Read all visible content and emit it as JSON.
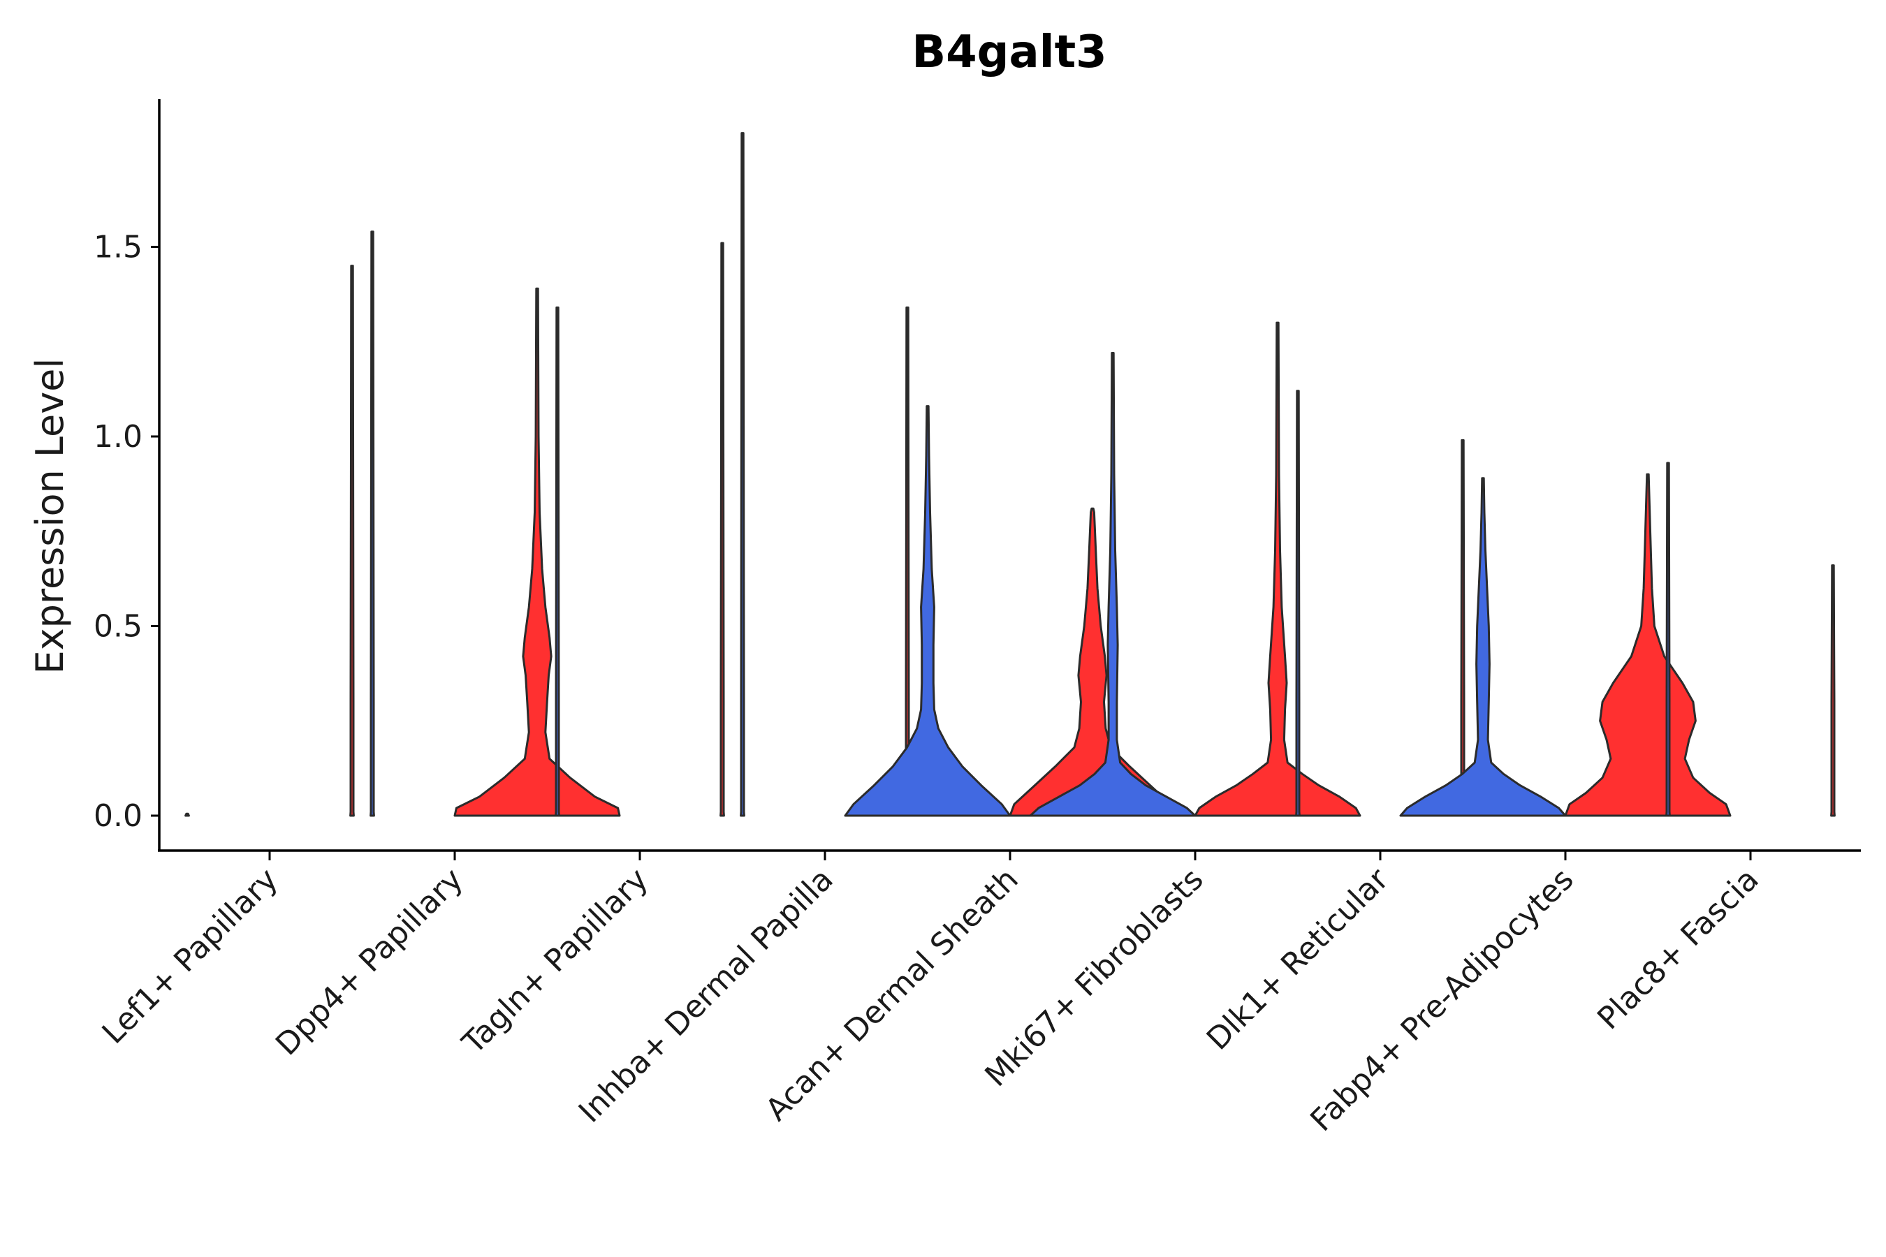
{
  "chart_data": {
    "type": "violin",
    "title": "B4galt3",
    "xlabel": "",
    "ylabel": "Expression Level",
    "ylim": [
      -0.09,
      1.89
    ],
    "yticks": [
      0.0,
      0.5,
      1.0,
      1.5
    ],
    "ytick_labels": [
      "0.0",
      "0.5",
      "1.0",
      "1.5"
    ],
    "categories": [
      "Lef1+ Papillary",
      "Dpp4+ Papillary",
      "Tagln+ Papillary",
      "Inhba+ Dermal Papilla",
      "Acan+ Dermal Sheath",
      "Mki67+ Fibroblasts",
      "Dlk1+ Reticular",
      "Fabp4+ Pre-Adipocytes",
      "Plac8+ Fascia"
    ],
    "split_colors": {
      "left": "#4169E1",
      "right": "#FF3030"
    },
    "violins": [
      {
        "category": "Lef1+ Papillary",
        "side": "left",
        "color": "#4169E1",
        "max": 0.0,
        "densities": [
          [
            0,
            0.02
          ],
          [
            0.005,
            0
          ]
        ]
      },
      {
        "category": "Lef1+ Papillary",
        "side": "right",
        "color": "#FF3030",
        "max": 1.45,
        "densities": [
          [
            0,
            0.02
          ],
          [
            0.01,
            0.002
          ],
          [
            0.3,
            0.001
          ],
          [
            1.45,
            0.001
          ]
        ]
      },
      {
        "category": "Dpp4+ Papillary",
        "side": "left",
        "color": "#4169E1",
        "max": 1.54,
        "densities": [
          [
            0,
            0.02
          ],
          [
            0.01,
            0.002
          ],
          [
            0.3,
            0.001
          ],
          [
            1.54,
            0.001
          ]
        ]
      },
      {
        "category": "Dpp4+ Papillary",
        "side": "right",
        "color": "#FF3030",
        "max": 1.39,
        "densities": [
          [
            0,
            1.0
          ],
          [
            0.02,
            0.98
          ],
          [
            0.05,
            0.7
          ],
          [
            0.1,
            0.4
          ],
          [
            0.15,
            0.15
          ],
          [
            0.22,
            0.1
          ],
          [
            0.3,
            0.12
          ],
          [
            0.37,
            0.14
          ],
          [
            0.42,
            0.17
          ],
          [
            0.47,
            0.15
          ],
          [
            0.55,
            0.1
          ],
          [
            0.65,
            0.06
          ],
          [
            0.8,
            0.03
          ],
          [
            1.0,
            0.01
          ],
          [
            1.39,
            0.001
          ]
        ]
      },
      {
        "category": "Tagln+ Papillary",
        "side": "left",
        "color": "#4169E1",
        "max": 1.34,
        "densities": [
          [
            0,
            0.02
          ],
          [
            0.01,
            0.002
          ],
          [
            0.3,
            0.001
          ],
          [
            1.34,
            0.001
          ]
        ]
      },
      {
        "category": "Tagln+ Papillary",
        "side": "right",
        "color": "#FF3030",
        "max": 1.51,
        "densities": [
          [
            0,
            0.02
          ],
          [
            0.01,
            0.002
          ],
          [
            0.3,
            0.001
          ],
          [
            1.51,
            0.001
          ]
        ]
      },
      {
        "category": "Inhba+ Dermal Papilla",
        "side": "left",
        "color": "#4169E1",
        "max": 1.8,
        "densities": [
          [
            0,
            0.02
          ],
          [
            0.01,
            0.002
          ],
          [
            0.3,
            0.001
          ],
          [
            1.8,
            0.001
          ]
        ]
      },
      {
        "category": "Inhba+ Dermal Papilla",
        "side": "right",
        "color": "#FF3030",
        "max": 1.34,
        "densities": [
          [
            0,
            0.02
          ],
          [
            0.01,
            0.002
          ],
          [
            0.3,
            0.001
          ],
          [
            1.34,
            0.001
          ]
        ]
      },
      {
        "category": "Acan+ Dermal Sheath",
        "side": "left",
        "color": "#4169E1",
        "max": 1.08,
        "densities": [
          [
            0,
            1.0
          ],
          [
            0.03,
            0.9
          ],
          [
            0.08,
            0.65
          ],
          [
            0.13,
            0.42
          ],
          [
            0.18,
            0.25
          ],
          [
            0.23,
            0.13
          ],
          [
            0.28,
            0.08
          ],
          [
            0.35,
            0.07
          ],
          [
            0.45,
            0.07
          ],
          [
            0.55,
            0.08
          ],
          [
            0.65,
            0.05
          ],
          [
            0.8,
            0.03
          ],
          [
            0.95,
            0.015
          ],
          [
            1.08,
            0.001
          ]
        ]
      },
      {
        "category": "Acan+ Dermal Sheath",
        "side": "right",
        "color": "#FF3030",
        "max": 0.81,
        "densities": [
          [
            0,
            1.0
          ],
          [
            0.03,
            0.95
          ],
          [
            0.08,
            0.7
          ],
          [
            0.13,
            0.45
          ],
          [
            0.18,
            0.22
          ],
          [
            0.23,
            0.16
          ],
          [
            0.3,
            0.14
          ],
          [
            0.37,
            0.17
          ],
          [
            0.42,
            0.15
          ],
          [
            0.5,
            0.1
          ],
          [
            0.6,
            0.06
          ],
          [
            0.7,
            0.04
          ],
          [
            0.8,
            0.02
          ],
          [
            0.81,
            0.001
          ]
        ]
      },
      {
        "category": "Mki67+ Fibroblasts",
        "side": "left",
        "color": "#4169E1",
        "max": 1.22,
        "densities": [
          [
            0,
            1.0
          ],
          [
            0.02,
            0.9
          ],
          [
            0.05,
            0.65
          ],
          [
            0.08,
            0.4
          ],
          [
            0.11,
            0.22
          ],
          [
            0.14,
            0.09
          ],
          [
            0.2,
            0.05
          ],
          [
            0.3,
            0.05
          ],
          [
            0.45,
            0.06
          ],
          [
            0.55,
            0.05
          ],
          [
            0.7,
            0.03
          ],
          [
            0.9,
            0.015
          ],
          [
            1.22,
            0.001
          ]
        ]
      },
      {
        "category": "Mki67+ Fibroblasts",
        "side": "right",
        "color": "#FF3030",
        "max": 1.3,
        "densities": [
          [
            0,
            1.0
          ],
          [
            0.02,
            0.95
          ],
          [
            0.05,
            0.75
          ],
          [
            0.08,
            0.5
          ],
          [
            0.11,
            0.3
          ],
          [
            0.14,
            0.12
          ],
          [
            0.2,
            0.08
          ],
          [
            0.28,
            0.09
          ],
          [
            0.35,
            0.11
          ],
          [
            0.42,
            0.09
          ],
          [
            0.55,
            0.05
          ],
          [
            0.7,
            0.03
          ],
          [
            0.9,
            0.015
          ],
          [
            1.3,
            0.001
          ]
        ]
      },
      {
        "category": "Dlk1+ Reticular",
        "side": "left",
        "color": "#4169E1",
        "max": 1.12,
        "densities": [
          [
            0,
            0.02
          ],
          [
            0.01,
            0.002
          ],
          [
            0.3,
            0.001
          ],
          [
            1.12,
            0.001
          ]
        ]
      },
      {
        "category": "Dlk1+ Reticular",
        "side": "right",
        "color": "#FF3030",
        "max": 0.99,
        "densities": [
          [
            0,
            0.02
          ],
          [
            0.01,
            0.002
          ],
          [
            0.3,
            0.001
          ],
          [
            0.99,
            0.001
          ]
        ]
      },
      {
        "category": "Fabp4+ Pre-Adipocytes",
        "side": "left",
        "color": "#4169E1",
        "max": 0.89,
        "densities": [
          [
            0,
            1.0
          ],
          [
            0.02,
            0.92
          ],
          [
            0.05,
            0.7
          ],
          [
            0.08,
            0.45
          ],
          [
            0.11,
            0.25
          ],
          [
            0.14,
            0.1
          ],
          [
            0.2,
            0.06
          ],
          [
            0.3,
            0.07
          ],
          [
            0.4,
            0.08
          ],
          [
            0.5,
            0.07
          ],
          [
            0.6,
            0.05
          ],
          [
            0.7,
            0.03
          ],
          [
            0.8,
            0.015
          ],
          [
            0.89,
            0.001
          ]
        ]
      },
      {
        "category": "Fabp4+ Pre-Adipocytes",
        "side": "right",
        "color": "#FF3030",
        "max": 0.9,
        "densities": [
          [
            0,
            1.0
          ],
          [
            0.03,
            0.95
          ],
          [
            0.06,
            0.75
          ],
          [
            0.1,
            0.55
          ],
          [
            0.15,
            0.45
          ],
          [
            0.2,
            0.5
          ],
          [
            0.25,
            0.58
          ],
          [
            0.3,
            0.55
          ],
          [
            0.35,
            0.42
          ],
          [
            0.42,
            0.2
          ],
          [
            0.5,
            0.08
          ],
          [
            0.6,
            0.05
          ],
          [
            0.75,
            0.03
          ],
          [
            0.9,
            0.001
          ]
        ]
      },
      {
        "category": "Plac8+ Fascia",
        "side": "left",
        "color": "#4169E1",
        "max": 0.93,
        "densities": [
          [
            0,
            0.02
          ],
          [
            0.01,
            0.002
          ],
          [
            0.3,
            0.001
          ],
          [
            0.93,
            0.001
          ]
        ]
      },
      {
        "category": "Plac8+ Fascia",
        "side": "right",
        "color": "#FF3030",
        "max": 0.66,
        "densities": [
          [
            0,
            0.02
          ],
          [
            0.01,
            0.002
          ],
          [
            0.3,
            0.001
          ],
          [
            0.66,
            0.001
          ]
        ]
      }
    ]
  }
}
